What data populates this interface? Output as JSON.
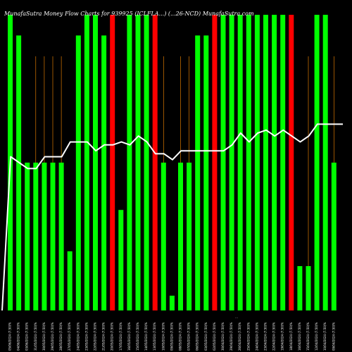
{
  "chart_data": {
    "type": "bar",
    "title": "MunafaSutra  Money Flow  Charts for 939925  (ICLFLA...)  (...26-NCD)  MunafaSutra.com",
    "xlabel": "",
    "colors": {
      "up": "#00ff00",
      "down": "#ff0000",
      "line": "#ffffff",
      "grid": "#ff8c00",
      "background": "#000000"
    },
    "bars": [
      {
        "label": "05/06/2024 (7.50)%",
        "value": 100,
        "dir": "up"
      },
      {
        "label": "04/06/2024 (7.50)%",
        "value": 93,
        "dir": "up"
      },
      {
        "label": "03/06/2024 (7.50)%",
        "value": 50,
        "dir": "up"
      },
      {
        "label": "31/05/2024 (7.50)%",
        "value": 50,
        "dir": "up"
      },
      {
        "label": "30/05/2024 (7.50)%",
        "value": 50,
        "dir": "up"
      },
      {
        "label": "29/05/2024 (7.50)%",
        "value": 50,
        "dir": "up"
      },
      {
        "label": "28/05/2024 (7.50)%",
        "value": 50,
        "dir": "up"
      },
      {
        "label": "27/05/2024 (7.50)%",
        "value": 20,
        "dir": "up"
      },
      {
        "label": "24/05/2024 (7.50)%",
        "value": 93,
        "dir": "up"
      },
      {
        "label": "23/05/2024 (7.50)%",
        "value": 100,
        "dir": "up"
      },
      {
        "label": "22/05/2024 (7.50)%",
        "value": 100,
        "dir": "up"
      },
      {
        "label": "21/05/2024 (7.50)%",
        "value": 93,
        "dir": "up"
      },
      {
        "label": "20/05/2024 (7.50)%",
        "value": 100,
        "dir": "down"
      },
      {
        "label": "17/05/2024 (7.50)%",
        "value": 34,
        "dir": "up"
      },
      {
        "label": "16/05/2024 (7.50)%",
        "value": 100,
        "dir": "up"
      },
      {
        "label": "15/05/2024 (7.50)%",
        "value": 100,
        "dir": "up"
      },
      {
        "label": "14/05/2024 (7.50)%",
        "value": 100,
        "dir": "up"
      },
      {
        "label": "13/05/2024 (7.50)%",
        "value": 100,
        "dir": "down"
      },
      {
        "label": "10/05/2024 (7.50)%",
        "value": 50,
        "dir": "up"
      },
      {
        "label": "09/05/2024 (7.50)%",
        "value": 5,
        "dir": "up"
      },
      {
        "label": "08/05/2024 (7.50)%",
        "value": 50,
        "dir": "up"
      },
      {
        "label": "07/05/2024 (7.50)%",
        "value": 50,
        "dir": "up"
      },
      {
        "label": "06/05/2024 (7.50)%",
        "value": 93,
        "dir": "up"
      },
      {
        "label": "03/05/2024 (7.50)%",
        "value": 93,
        "dir": "up"
      },
      {
        "label": "02/05/2024 (7.50)%",
        "value": 100,
        "dir": "down"
      },
      {
        "label": "30/04/2024 (7.50)%",
        "value": 100,
        "dir": "up"
      },
      {
        "label": "29/04/2024 (7.50)%",
        "value": 100,
        "dir": "up"
      },
      {
        "label": "26/04/2024 (7.50)%",
        "value": 100,
        "dir": "up"
      },
      {
        "label": "25/04/2024 (7.50)%",
        "value": 100,
        "dir": "up"
      },
      {
        "label": "24/04/2024 (7.50)%",
        "value": 100,
        "dir": "up"
      },
      {
        "label": "23/04/2024 (7.50)%",
        "value": 100,
        "dir": "up"
      },
      {
        "label": "22/04/2024 (7.50)%",
        "value": 100,
        "dir": "up"
      },
      {
        "label": "19/04/2024 (7.50)%",
        "value": 100,
        "dir": "up"
      },
      {
        "label": "18/04/2024 (7.50)%",
        "value": 100,
        "dir": "down"
      },
      {
        "label": "16/04/2024 (7.50)%",
        "value": 15,
        "dir": "up"
      },
      {
        "label": "15/04/2024 (7.50)%",
        "value": 15,
        "dir": "up"
      },
      {
        "label": "12/04/2024 (7.50)%",
        "value": 100,
        "dir": "up"
      },
      {
        "label": "10/04/2024 (7.50)%",
        "value": 100,
        "dir": "up"
      },
      {
        "label": "09/04/2024 (7.50)%",
        "value": 50,
        "dir": "up"
      }
    ],
    "gridlines": [
      3,
      4,
      5,
      6,
      8,
      9,
      10,
      11,
      12,
      14,
      15,
      16,
      17,
      18,
      20,
      21,
      22,
      23,
      25,
      26,
      27,
      28,
      30,
      31,
      32,
      33,
      35,
      36,
      37,
      38
    ],
    "line": [
      0,
      52,
      50,
      48,
      48,
      52,
      52,
      52,
      57,
      57,
      57,
      54,
      56,
      56,
      57,
      56,
      59,
      57,
      53,
      53,
      51,
      54,
      54,
      54,
      54,
      54,
      54,
      56,
      60,
      57,
      60,
      61,
      59,
      61,
      59,
      57,
      59,
      63,
      63,
      63,
      63
    ],
    "ylim": [
      0,
      105
    ]
  },
  "bottom_label": "..."
}
